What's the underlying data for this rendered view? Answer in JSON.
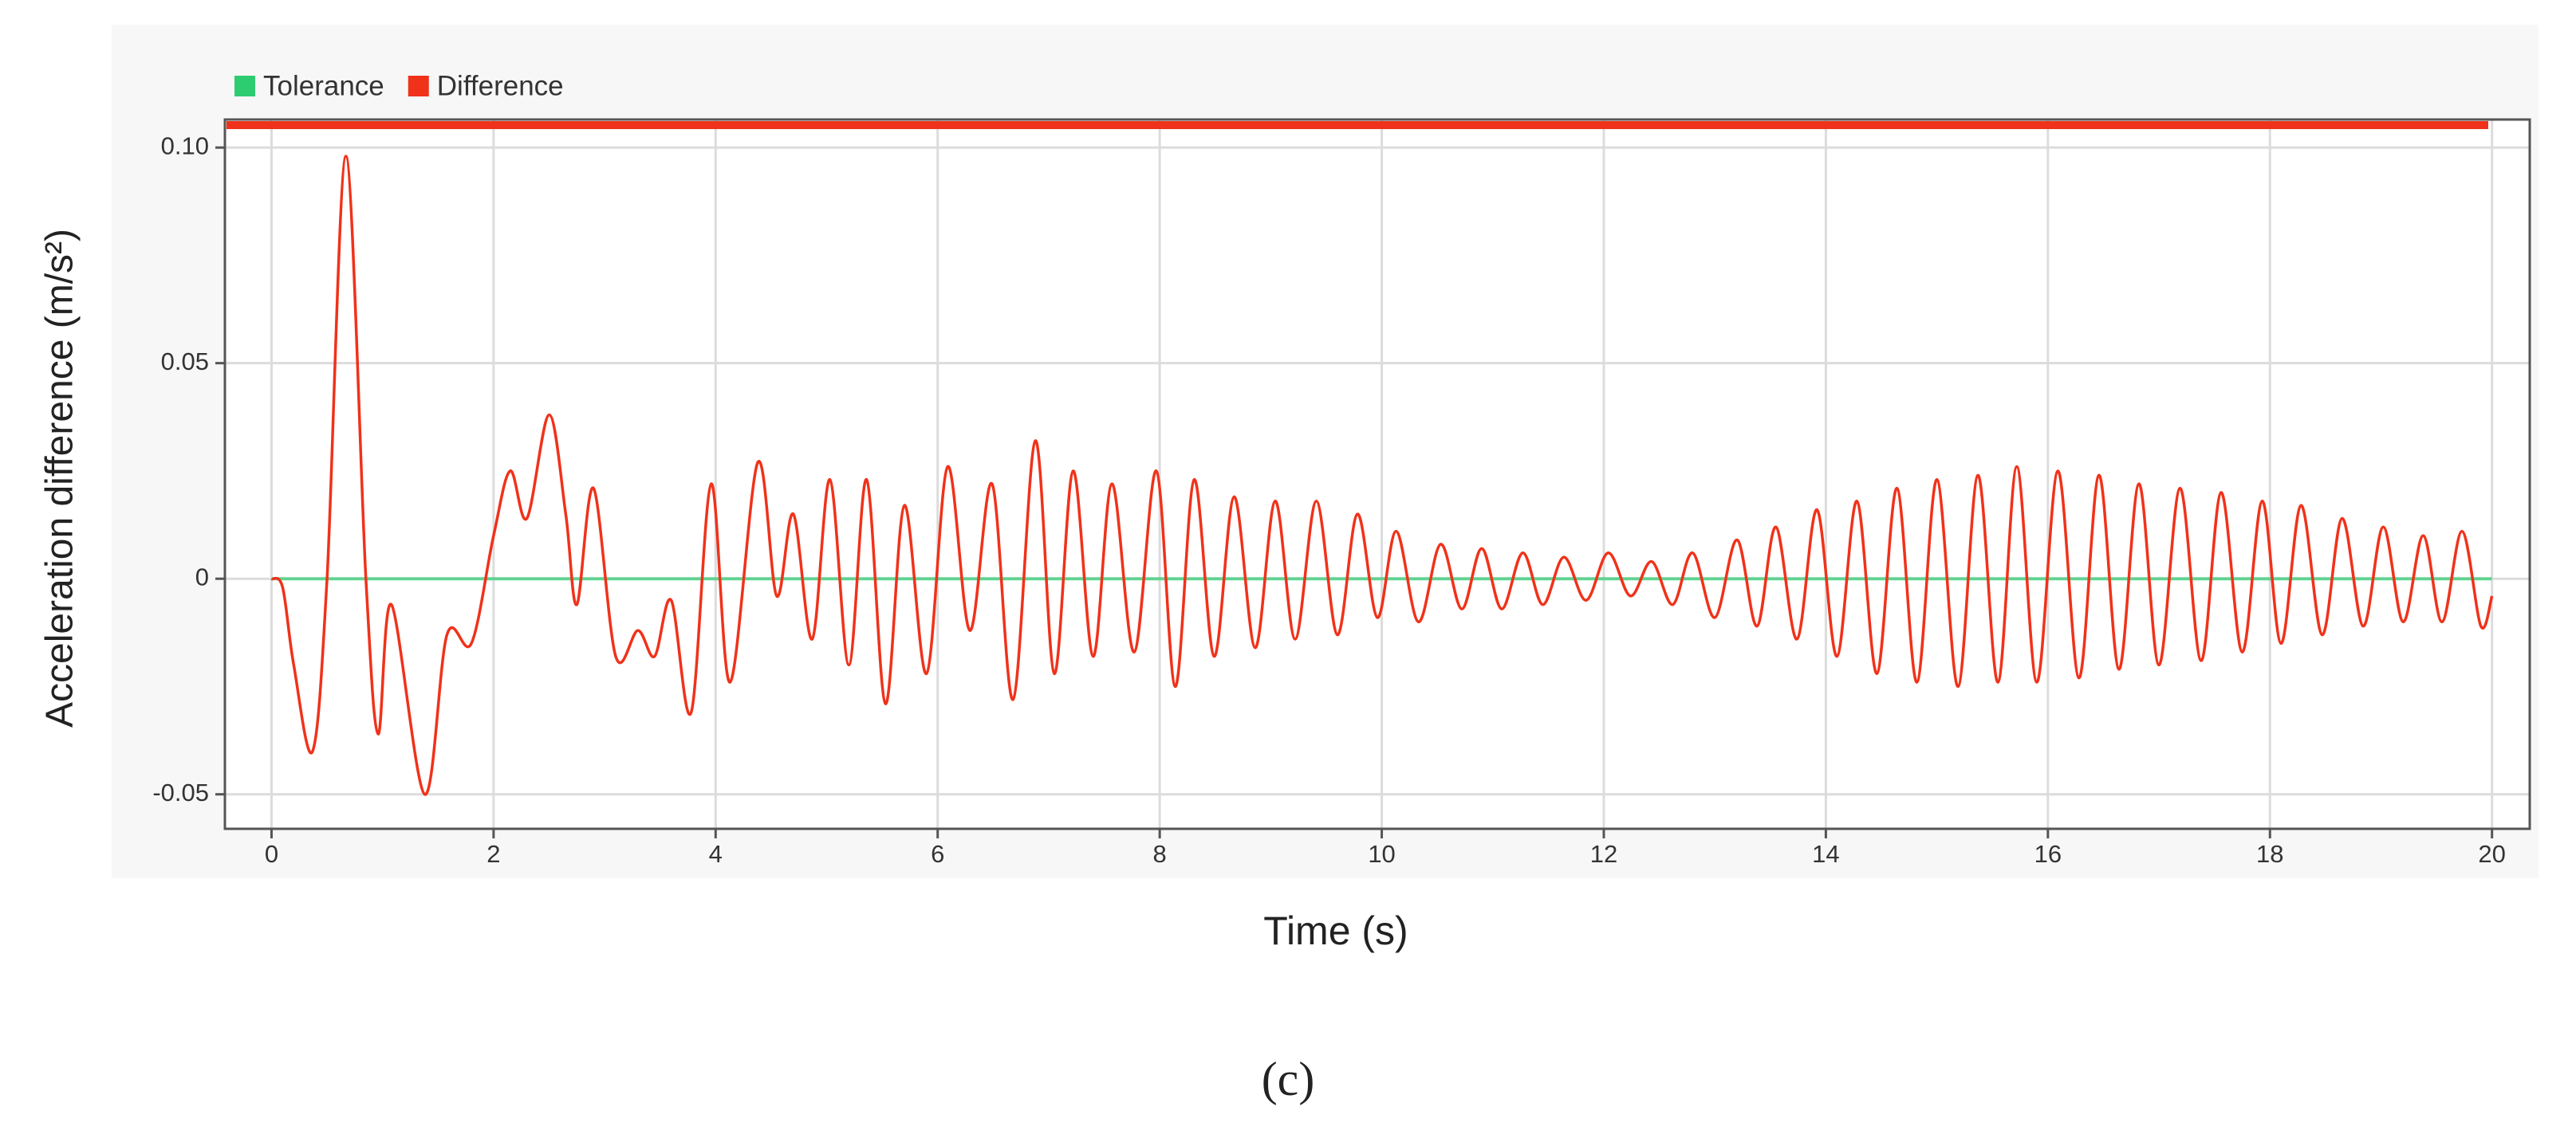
{
  "chart_data": {
    "type": "line",
    "ylabel": "Acceleration difference (m/s²)",
    "xlabel": "Time (s)",
    "caption": "(c)",
    "xlim": [
      -0.42,
      20.34
    ],
    "xticks": [
      0,
      2,
      4,
      6,
      8,
      10,
      12,
      14,
      16,
      18,
      20
    ],
    "ylim": [
      -0.058,
      0.1065
    ],
    "yticks": [
      {
        "value": -0.05,
        "label": "-0.05"
      },
      0,
      {
        "value": 0.05,
        "label": "0.05"
      },
      {
        "value": 0.1,
        "label": "0.10"
      }
    ],
    "grid": true,
    "legend": "top-left",
    "series": [
      {
        "name": "Tolerance",
        "color": "#2ecc71",
        "x": [
          0,
          20
        ],
        "values": [
          0,
          0
        ]
      },
      {
        "name": "Difference",
        "color": "#f0321a",
        "x": [
          0,
          0.1,
          0.2,
          0.37,
          0.5,
          0.67,
          0.85,
          0.96,
          1.08,
          1.38,
          1.58,
          1.8,
          2.0,
          2.15,
          2.3,
          2.5,
          2.65,
          2.75,
          2.9,
          3.1,
          3.3,
          3.45,
          3.6,
          3.78,
          3.96,
          4.13,
          4.38,
          4.55,
          4.7,
          4.87,
          5.03,
          5.2,
          5.36,
          5.53,
          5.7,
          5.9,
          6.09,
          6.29,
          6.49,
          6.68,
          6.88,
          7.05,
          7.22,
          7.4,
          7.57,
          7.77,
          7.97,
          8.14,
          8.31,
          8.49,
          8.67,
          8.86,
          9.04,
          9.22,
          9.41,
          9.6,
          9.78,
          9.96,
          10.13,
          10.33,
          10.53,
          10.72,
          10.9,
          11.08,
          11.27,
          11.45,
          11.64,
          11.84,
          12.04,
          12.24,
          12.43,
          12.62,
          12.8,
          13.0,
          13.2,
          13.38,
          13.55,
          13.74,
          13.92,
          14.1,
          14.28,
          14.46,
          14.64,
          14.82,
          15.0,
          15.19,
          15.37,
          15.55,
          15.72,
          15.9,
          16.09,
          16.28,
          16.46,
          16.64,
          16.82,
          17.0,
          17.19,
          17.38,
          17.56,
          17.75,
          17.93,
          18.1,
          18.28,
          18.47,
          18.65,
          18.84,
          19.02,
          19.2,
          19.38,
          19.55,
          19.73,
          19.9,
          20
        ],
        "values": [
          0,
          -0.002,
          -0.02,
          -0.04,
          0.0,
          0.098,
          0.0,
          -0.036,
          -0.006,
          -0.05,
          -0.013,
          -0.015,
          0.01,
          0.025,
          0.014,
          0.038,
          0.015,
          -0.006,
          0.021,
          -0.018,
          -0.012,
          -0.018,
          -0.005,
          -0.031,
          0.022,
          -0.024,
          0.027,
          -0.004,
          0.015,
          -0.014,
          0.023,
          -0.02,
          0.023,
          -0.029,
          0.017,
          -0.022,
          0.026,
          -0.012,
          0.022,
          -0.028,
          0.032,
          -0.022,
          0.025,
          -0.018,
          0.022,
          -0.017,
          0.025,
          -0.025,
          0.023,
          -0.018,
          0.019,
          -0.016,
          0.018,
          -0.014,
          0.018,
          -0.013,
          0.015,
          -0.009,
          0.011,
          -0.01,
          0.008,
          -0.007,
          0.007,
          -0.007,
          0.006,
          -0.006,
          0.005,
          -0.005,
          0.006,
          -0.004,
          0.004,
          -0.006,
          0.006,
          -0.009,
          0.009,
          -0.011,
          0.012,
          -0.014,
          0.016,
          -0.018,
          0.018,
          -0.022,
          0.021,
          -0.024,
          0.023,
          -0.025,
          0.024,
          -0.024,
          0.026,
          -0.024,
          0.025,
          -0.023,
          0.024,
          -0.021,
          0.022,
          -0.02,
          0.021,
          -0.019,
          0.02,
          -0.017,
          0.018,
          -0.015,
          0.017,
          -0.013,
          0.014,
          -0.011,
          0.012,
          -0.01,
          0.01,
          -0.01,
          0.011,
          -0.011,
          -0.004
        ]
      }
    ]
  }
}
